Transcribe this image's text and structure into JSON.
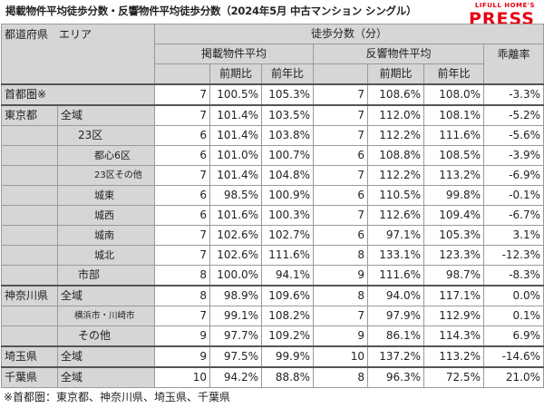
{
  "title": "掲載物件平均徒歩分数・反響物件平均徒歩分数（2024年5月 中古マンション シングル）",
  "brand": {
    "sub": "LIFULL HOME'S",
    "main": "PRESS"
  },
  "header": {
    "region": "都道府県　エリア",
    "walk": "徒歩分数（分）",
    "listed": "掲載物件平均",
    "response": "反響物件平均",
    "prev_period": "前期比",
    "prev_year": "前年比",
    "gap": "乖離率"
  },
  "rows": [
    {
      "pref": "首都圏※",
      "area": "",
      "lm": "7",
      "lp": "100.5%",
      "ly": "105.3%",
      "rm": "7",
      "rp": "108.6%",
      "ry": "108.0%",
      "gap": "-3.3%"
    },
    {
      "pref": "東京都",
      "area": "全域",
      "lm": "7",
      "lp": "101.4%",
      "ly": "103.5%",
      "rm": "7",
      "rp": "112.0%",
      "ry": "108.1%",
      "gap": "-5.2%"
    },
    {
      "pref": "",
      "area": "23区",
      "lm": "6",
      "lp": "101.4%",
      "ly": "103.8%",
      "rm": "7",
      "rp": "112.2%",
      "ry": "111.6%",
      "gap": "-5.6%"
    },
    {
      "pref": "",
      "area": "都心6区",
      "lm": "6",
      "lp": "101.0%",
      "ly": "100.7%",
      "rm": "6",
      "rp": "108.8%",
      "ry": "108.5%",
      "gap": "-3.9%"
    },
    {
      "pref": "",
      "area": "23区その他",
      "lm": "7",
      "lp": "101.4%",
      "ly": "104.8%",
      "rm": "7",
      "rp": "112.2%",
      "ry": "113.2%",
      "gap": "-6.9%"
    },
    {
      "pref": "",
      "area": "城東",
      "lm": "6",
      "lp": "98.5%",
      "ly": "100.9%",
      "rm": "6",
      "rp": "110.5%",
      "ry": "99.8%",
      "gap": "-0.1%"
    },
    {
      "pref": "",
      "area": "城西",
      "lm": "6",
      "lp": "101.6%",
      "ly": "100.3%",
      "rm": "7",
      "rp": "112.6%",
      "ry": "109.4%",
      "gap": "-6.7%"
    },
    {
      "pref": "",
      "area": "城南",
      "lm": "7",
      "lp": "102.6%",
      "ly": "102.7%",
      "rm": "6",
      "rp": "97.1%",
      "ry": "105.3%",
      "gap": "3.1%"
    },
    {
      "pref": "",
      "area": "城北",
      "lm": "7",
      "lp": "102.6%",
      "ly": "111.6%",
      "rm": "8",
      "rp": "133.1%",
      "ry": "123.3%",
      "gap": "-12.3%"
    },
    {
      "pref": "",
      "area": "市部",
      "lm": "8",
      "lp": "100.0%",
      "ly": "94.1%",
      "rm": "9",
      "rp": "111.6%",
      "ry": "98.7%",
      "gap": "-8.3%"
    },
    {
      "pref": "神奈川県",
      "area": "全域",
      "lm": "8",
      "lp": "98.9%",
      "ly": "109.6%",
      "rm": "8",
      "rp": "94.0%",
      "ry": "117.1%",
      "gap": "0.0%"
    },
    {
      "pref": "",
      "area": "横浜市・川崎市",
      "lm": "7",
      "lp": "99.1%",
      "ly": "108.2%",
      "rm": "7",
      "rp": "97.9%",
      "ry": "112.9%",
      "gap": "0.1%"
    },
    {
      "pref": "",
      "area": "その他",
      "lm": "9",
      "lp": "97.7%",
      "ly": "109.2%",
      "rm": "9",
      "rp": "86.1%",
      "ry": "114.3%",
      "gap": "6.9%"
    },
    {
      "pref": "埼玉県",
      "area": "全域",
      "lm": "9",
      "lp": "97.5%",
      "ly": "99.9%",
      "rm": "10",
      "rp": "137.2%",
      "ry": "113.2%",
      "gap": "-14.6%"
    },
    {
      "pref": "千葉県",
      "area": "全域",
      "lm": "10",
      "lp": "94.2%",
      "ly": "88.8%",
      "rm": "8",
      "rp": "96.3%",
      "ry": "72.5%",
      "gap": "21.0%"
    }
  ],
  "footnote": "※首都圏：東京都、神奈川県、埼玉県、千葉県"
}
